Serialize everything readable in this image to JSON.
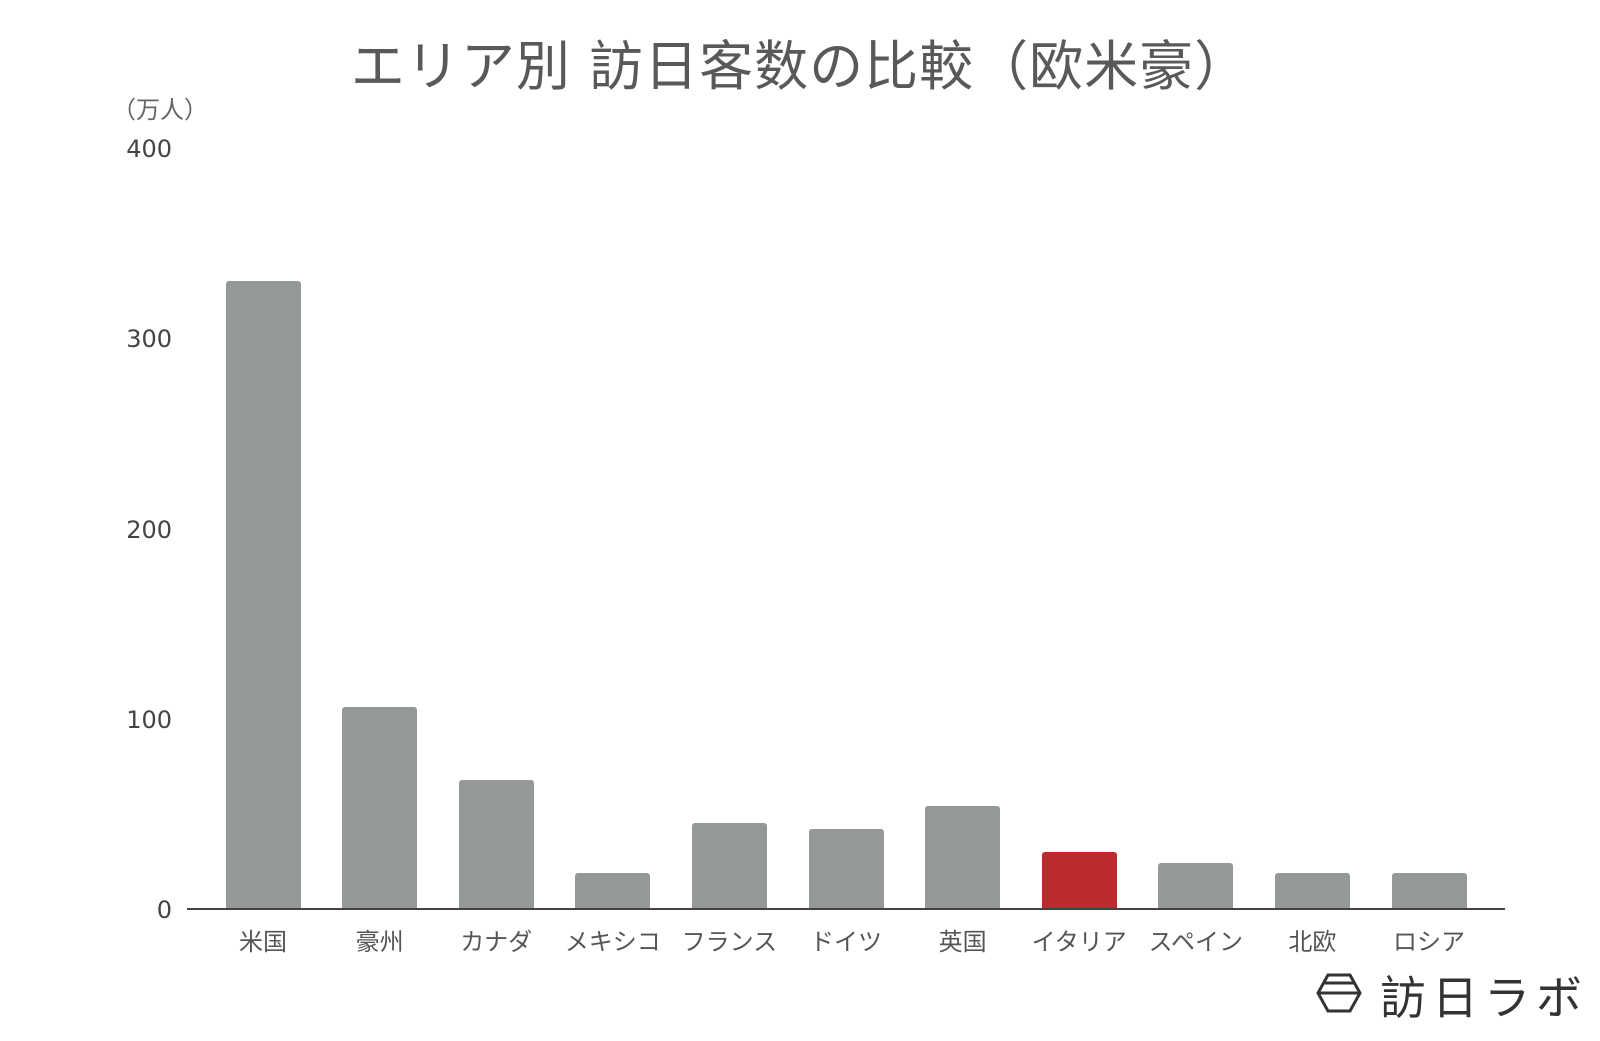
{
  "chart_data": {
    "type": "bar",
    "title": "エリア別 訪日客数の比較（欧米豪）",
    "xlabel": "",
    "ylabel": "（万人）",
    "ylim": [
      0,
      400
    ],
    "yticks": [
      0,
      100,
      200,
      300,
      400
    ],
    "grid": false,
    "legend": null,
    "categories": [
      "米国",
      "豪州",
      "カナダ",
      "メキシコ",
      "フランス",
      "ドイツ",
      "英国",
      "イタリア",
      "スペイン",
      "北欧",
      "ロシア"
    ],
    "values": [
      330,
      106,
      68,
      19,
      45,
      42,
      54,
      30,
      24,
      19,
      19
    ],
    "highlight": "イタリア",
    "colors": {
      "default": "#959899",
      "highlight": "#bd2a2e"
    }
  },
  "title": "エリア別 訪日客数の比較（欧米豪）",
  "unit_label": "（万人）",
  "y_tick_labels": [
    "0",
    "100",
    "200",
    "300",
    "400"
  ],
  "logo": {
    "text": "訪日ラボ",
    "icon": "hexagon-logo-icon"
  }
}
